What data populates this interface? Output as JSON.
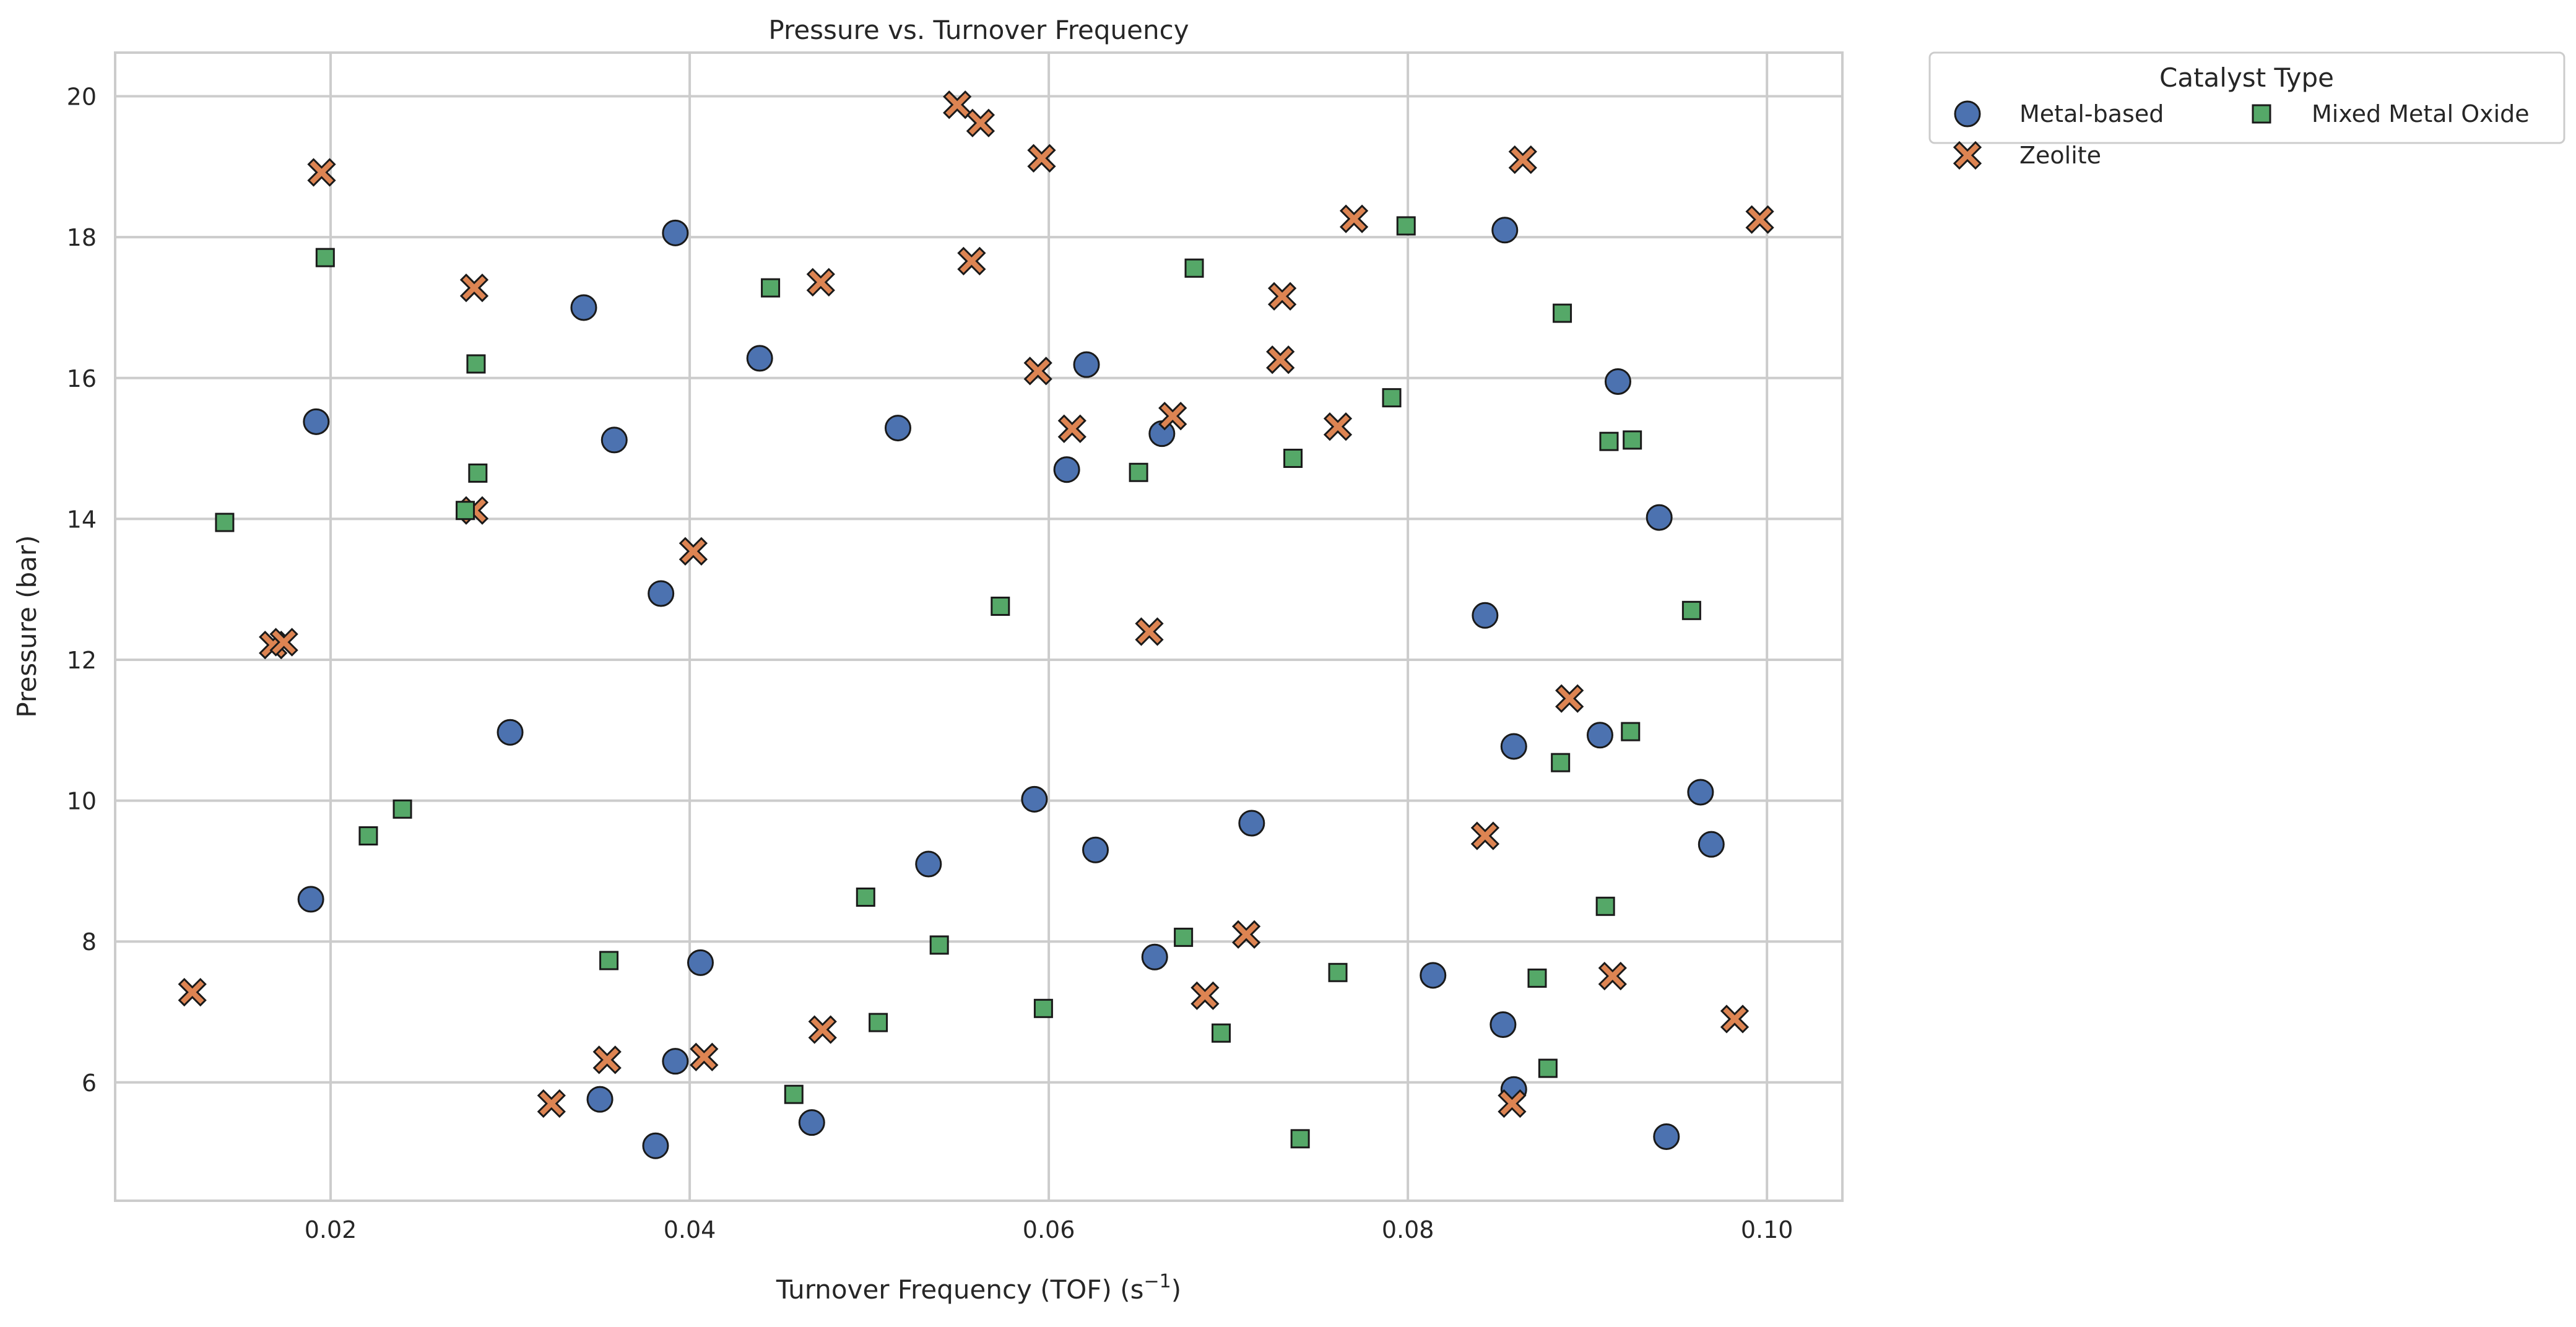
{
  "chart_data": {
    "type": "scatter",
    "title": "Pressure vs. Turnover Frequency",
    "xlabel": "Turnover Frequency (TOF) (s",
    "xlabel_sup": "−1",
    "xlabel_close": ")",
    "ylabel": "Pressure (bar)",
    "xlim": [
      0.008,
      0.1042
    ],
    "ylim": [
      4.32,
      20.62
    ],
    "xticks": [
      0.02,
      0.04,
      0.06,
      0.08,
      0.1
    ],
    "xtick_labels": [
      "0.02",
      "0.04",
      "0.06",
      "0.08",
      "0.10"
    ],
    "yticks": [
      6,
      8,
      10,
      12,
      14,
      16,
      18,
      20
    ],
    "ytick_labels": [
      "6",
      "8",
      "10",
      "12",
      "14",
      "16",
      "18",
      "20"
    ],
    "grid": true,
    "legend": {
      "title": "Catalyst Type",
      "placement": "outside-upper-right"
    },
    "series": [
      {
        "name": "Metal-based",
        "marker": "circle",
        "color": "#4C72B0",
        "points": [
          [
            0.0192,
            15.38
          ],
          [
            0.0189,
            8.6
          ],
          [
            0.03,
            10.97
          ],
          [
            0.0341,
            17.0
          ],
          [
            0.0358,
            15.12
          ],
          [
            0.0392,
            18.06
          ],
          [
            0.0384,
            12.94
          ],
          [
            0.0439,
            16.28
          ],
          [
            0.0392,
            6.3
          ],
          [
            0.0406,
            7.7
          ],
          [
            0.035,
            5.76
          ],
          [
            0.0381,
            5.1
          ],
          [
            0.0468,
            5.43
          ],
          [
            0.0516,
            15.29
          ],
          [
            0.0533,
            9.1
          ],
          [
            0.0592,
            10.02
          ],
          [
            0.0621,
            16.19
          ],
          [
            0.061,
            14.7
          ],
          [
            0.0626,
            9.3
          ],
          [
            0.0663,
            15.21
          ],
          [
            0.0659,
            7.78
          ],
          [
            0.0713,
            9.68
          ],
          [
            0.0814,
            7.52
          ],
          [
            0.0854,
            18.1
          ],
          [
            0.0843,
            12.63
          ],
          [
            0.0859,
            10.77
          ],
          [
            0.0853,
            6.82
          ],
          [
            0.0859,
            5.9
          ],
          [
            0.0917,
            15.95
          ],
          [
            0.0907,
            10.93
          ],
          [
            0.094,
            14.02
          ],
          [
            0.0963,
            10.12
          ],
          [
            0.0969,
            9.38
          ],
          [
            0.0944,
            5.23
          ]
        ]
      },
      {
        "name": "Zeolite",
        "marker": "x",
        "color": "#DD8452",
        "points": [
          [
            0.0195,
            18.92
          ],
          [
            0.0123,
            7.28
          ],
          [
            0.0168,
            12.21
          ],
          [
            0.0174,
            12.25
          ],
          [
            0.028,
            17.28
          ],
          [
            0.028,
            14.12
          ],
          [
            0.0402,
            13.54
          ],
          [
            0.0323,
            5.7
          ],
          [
            0.0354,
            6.32
          ],
          [
            0.0408,
            6.36
          ],
          [
            0.0473,
            17.36
          ],
          [
            0.0474,
            6.75
          ],
          [
            0.0549,
            19.88
          ],
          [
            0.0562,
            19.62
          ],
          [
            0.0596,
            19.12
          ],
          [
            0.0557,
            17.66
          ],
          [
            0.0594,
            16.1
          ],
          [
            0.0613,
            15.28
          ],
          [
            0.0669,
            15.46
          ],
          [
            0.0656,
            12.4
          ],
          [
            0.0687,
            7.23
          ],
          [
            0.071,
            8.1
          ],
          [
            0.077,
            18.26
          ],
          [
            0.073,
            17.16
          ],
          [
            0.0729,
            16.26
          ],
          [
            0.0761,
            15.31
          ],
          [
            0.0864,
            19.1
          ],
          [
            0.0843,
            9.5
          ],
          [
            0.089,
            11.45
          ],
          [
            0.0858,
            5.7
          ],
          [
            0.0914,
            7.51
          ],
          [
            0.0996,
            18.25
          ],
          [
            0.0982,
            6.9
          ]
        ]
      },
      {
        "name": "Mixed Metal Oxide",
        "marker": "square",
        "color": "#55A868",
        "points": [
          [
            0.0141,
            13.95
          ],
          [
            0.0197,
            17.71
          ],
          [
            0.0221,
            9.5
          ],
          [
            0.024,
            9.88
          ],
          [
            0.0281,
            16.2
          ],
          [
            0.0282,
            14.65
          ],
          [
            0.0275,
            14.12
          ],
          [
            0.0355,
            7.73
          ],
          [
            0.0445,
            17.28
          ],
          [
            0.0458,
            5.83
          ],
          [
            0.0498,
            8.63
          ],
          [
            0.0505,
            6.85
          ],
          [
            0.0539,
            7.95
          ],
          [
            0.0573,
            12.76
          ],
          [
            0.0597,
            7.05
          ],
          [
            0.065,
            14.66
          ],
          [
            0.0675,
            8.06
          ],
          [
            0.0681,
            17.56
          ],
          [
            0.0696,
            6.7
          ],
          [
            0.0736,
            14.86
          ],
          [
            0.0761,
            7.56
          ],
          [
            0.074,
            5.2
          ],
          [
            0.0791,
            15.72
          ],
          [
            0.0799,
            18.16
          ],
          [
            0.0872,
            7.48
          ],
          [
            0.0878,
            6.2
          ],
          [
            0.0886,
            16.92
          ],
          [
            0.0885,
            10.54
          ],
          [
            0.0912,
            15.1
          ],
          [
            0.0925,
            15.12
          ],
          [
            0.0924,
            10.98
          ],
          [
            0.091,
            8.5
          ],
          [
            0.0958,
            12.7
          ]
        ]
      }
    ]
  }
}
